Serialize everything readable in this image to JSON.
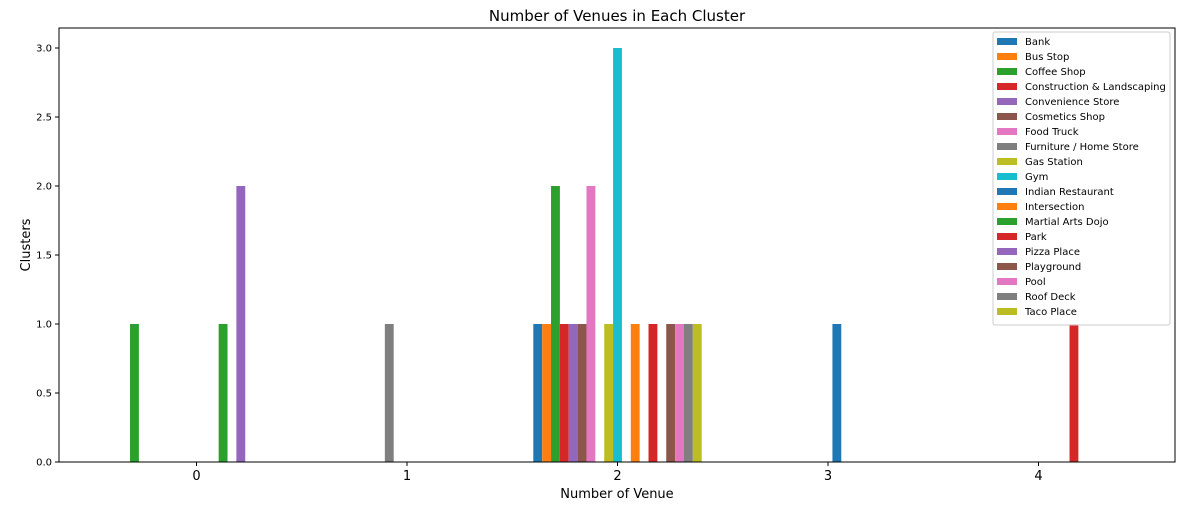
{
  "chart_data": {
    "type": "bar",
    "title": "Number of Venues in Each Cluster",
    "xlabel": "Number of Venue",
    "ylabel": "Clusters",
    "categories": [
      "0",
      "1",
      "2",
      "3",
      "4"
    ],
    "ylim": [
      0,
      3.0
    ],
    "yticks": [
      "0.0",
      "0.5",
      "1.0",
      "1.5",
      "2.0",
      "2.5",
      "3.0"
    ],
    "grid": false,
    "legend_position": "top-right",
    "series": [
      {
        "name": "Bank",
        "color": "#1f77b4",
        "values": [
          0,
          0,
          1,
          0,
          0
        ]
      },
      {
        "name": "Bus Stop",
        "color": "#ff7f0e",
        "values": [
          0,
          0,
          1,
          0,
          0
        ]
      },
      {
        "name": "Coffee Shop",
        "color": "#2ca02c",
        "values": [
          1,
          0,
          2,
          0,
          0
        ]
      },
      {
        "name": "Construction & Landscaping",
        "color": "#d62728",
        "values": [
          0,
          0,
          1,
          0,
          0
        ]
      },
      {
        "name": "Convenience Store",
        "color": "#9467bd",
        "values": [
          0,
          0,
          1,
          0,
          0
        ]
      },
      {
        "name": "Cosmetics Shop",
        "color": "#8c564b",
        "values": [
          0,
          0,
          1,
          0,
          0
        ]
      },
      {
        "name": "Food Truck",
        "color": "#e377c2",
        "values": [
          0,
          0,
          2,
          0,
          0
        ]
      },
      {
        "name": "Furniture / Home Store",
        "color": "#7f7f7f",
        "values": [
          0,
          1,
          0,
          0,
          0
        ]
      },
      {
        "name": "Gas Station",
        "color": "#bcbd22",
        "values": [
          0,
          0,
          1,
          0,
          0
        ]
      },
      {
        "name": "Gym",
        "color": "#17becf",
        "values": [
          0,
          0,
          3,
          0,
          0
        ]
      },
      {
        "name": "Indian Restaurant",
        "color": "#1f77b4",
        "values": [
          0,
          0,
          0,
          1,
          0
        ]
      },
      {
        "name": "Intersection",
        "color": "#ff7f0e",
        "values": [
          0,
          0,
          1,
          0,
          0
        ]
      },
      {
        "name": "Martial Arts Dojo",
        "color": "#2ca02c",
        "values": [
          1,
          0,
          0,
          0,
          0
        ]
      },
      {
        "name": "Park",
        "color": "#d62728",
        "values": [
          0,
          0,
          1,
          0,
          1
        ]
      },
      {
        "name": "Pizza Place",
        "color": "#9467bd",
        "values": [
          2,
          0,
          0,
          0,
          0
        ]
      },
      {
        "name": "Playground",
        "color": "#8c564b",
        "values": [
          0,
          0,
          1,
          0,
          0
        ]
      },
      {
        "name": "Pool",
        "color": "#e377c2",
        "values": [
          0,
          0,
          1,
          0,
          0
        ]
      },
      {
        "name": "Roof Deck",
        "color": "#7f7f7f",
        "values": [
          0,
          0,
          1,
          0,
          0
        ]
      },
      {
        "name": "Taco Place",
        "color": "#bcbd22",
        "values": [
          0,
          0,
          1,
          0,
          0
        ]
      }
    ]
  }
}
